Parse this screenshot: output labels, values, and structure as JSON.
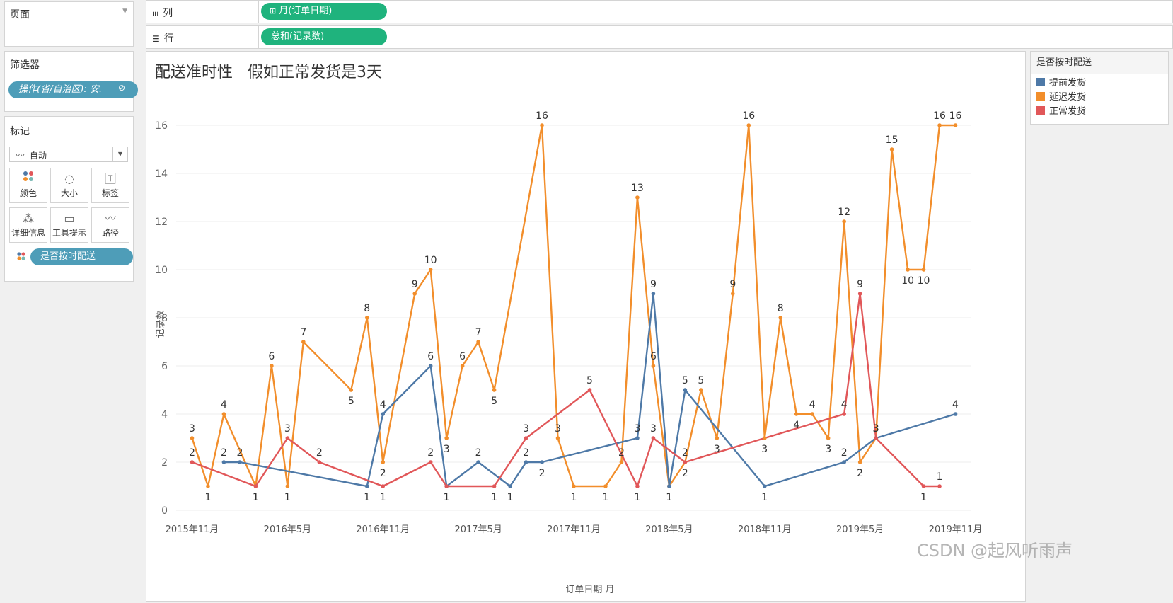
{
  "sidebar": {
    "pages_title": "页面",
    "filters_title": "筛选器",
    "filter_pill": "操作(省/自治区): 安.",
    "marks_title": "标记",
    "mark_type": "自动",
    "mark_buttons": [
      "颜色",
      "大小",
      "标签",
      "详细信息",
      "工具提示",
      "路径"
    ],
    "color_pill": "是否按时配送"
  },
  "shelves": {
    "columns_label": "列",
    "columns_pill": "月(订单日期)",
    "rows_label": "行",
    "rows_pill": "总和(记录数)"
  },
  "legend": {
    "title": "是否按时配送",
    "items": [
      {
        "label": "提前发货",
        "color": "#4e79a7"
      },
      {
        "label": "延迟发货",
        "color": "#f28e2b"
      },
      {
        "label": "正常发货",
        "color": "#e15759"
      }
    ]
  },
  "watermark": "CSDN @起风听雨声",
  "chart_data": {
    "type": "line",
    "title": "配送准时性   假如正常发货是3天",
    "xlabel": "订单日期 月",
    "ylabel": "记录数",
    "ylim": [
      0,
      17
    ],
    "yticks": [
      0,
      2,
      4,
      6,
      8,
      10,
      12,
      14,
      16
    ],
    "x_start": "2015-10",
    "x_end": "2019-12",
    "xticks": [
      {
        "x": 1,
        "label": "2015年11月"
      },
      {
        "x": 7,
        "label": "2016年5月"
      },
      {
        "x": 13,
        "label": "2016年11月"
      },
      {
        "x": 19,
        "label": "2017年5月"
      },
      {
        "x": 25,
        "label": "2017年11月"
      },
      {
        "x": 31,
        "label": "2018年5月"
      },
      {
        "x": 37,
        "label": "2018年11月"
      },
      {
        "x": 43,
        "label": "2019年5月"
      },
      {
        "x": 49,
        "label": "2019年11月"
      }
    ],
    "series": [
      {
        "name": "延迟发货",
        "color": "#f28e2b",
        "x": [
          1,
          2,
          3,
          5,
          6,
          7,
          8,
          11,
          12,
          13,
          15,
          16,
          17,
          18,
          19,
          20,
          23,
          24,
          25,
          27,
          28,
          29,
          30,
          31,
          32,
          33,
          34,
          35,
          36,
          37,
          38,
          39,
          40,
          41,
          42,
          43,
          44,
          45,
          46,
          47,
          48,
          49
        ],
        "values": [
          3,
          1,
          4,
          1,
          6,
          1,
          7,
          5,
          8,
          2,
          9,
          10,
          3,
          6,
          7,
          5,
          16,
          3,
          1,
          1,
          2,
          13,
          6,
          1,
          2,
          5,
          3,
          9,
          16,
          3,
          8,
          4,
          4,
          3,
          12,
          2,
          3,
          15,
          10,
          10,
          16,
          16
        ]
      },
      {
        "name": "提前发货",
        "color": "#4e79a7",
        "x": [
          3,
          4,
          12,
          13,
          16,
          17,
          19,
          21,
          22,
          23,
          29,
          30,
          31,
          32,
          37,
          42,
          44,
          49
        ],
        "values": [
          2,
          2,
          1,
          4,
          6,
          1,
          2,
          1,
          2,
          2,
          3,
          9,
          1,
          5,
          1,
          2,
          3,
          4
        ]
      },
      {
        "name": "正常发货",
        "color": "#e15759",
        "x": [
          1,
          5,
          7,
          9,
          13,
          16,
          17,
          20,
          22,
          26,
          29,
          30,
          32,
          42,
          43,
          44,
          47,
          48
        ],
        "values": [
          2,
          1,
          3,
          2,
          1,
          2,
          1,
          1,
          3,
          5,
          1,
          3,
          2,
          4,
          9,
          3,
          1,
          1
        ]
      }
    ]
  }
}
